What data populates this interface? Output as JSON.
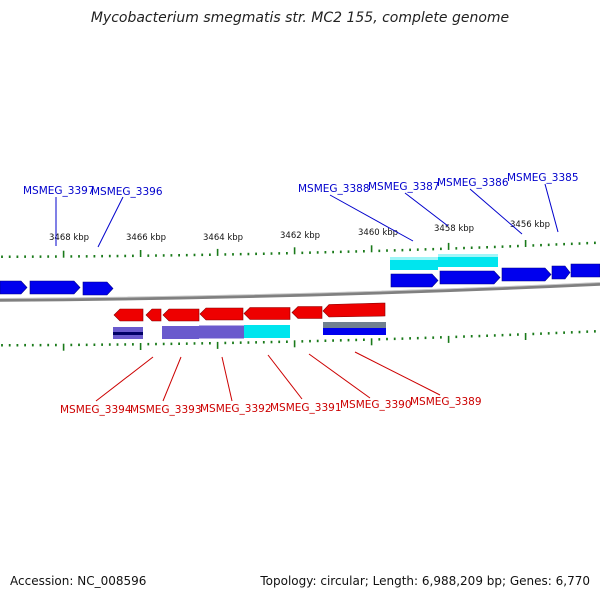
{
  "title": "Mycobacterium smegmatis str. MC2 155, complete genome",
  "colors": {
    "forward": "#0000ee",
    "reverse": "#ee0000",
    "forward_label": "#0000cc",
    "reverse_label": "#cc0000",
    "cyan": "#00e5ee",
    "purple": "#6a5acd",
    "tick": "#1a7a1a",
    "backbone": "#888888"
  },
  "kbp_labels": [
    "3468 kbp",
    "3466 kbp",
    "3464 kbp",
    "3462 kbp",
    "3460 kbp",
    "3458 kbp",
    "3456 kbp"
  ],
  "top_genes": [
    "MSMEG_3397",
    "MSMEG_3396",
    "MSMEG_3388",
    "MSMEG_3387",
    "MSMEG_3386",
    "MSMEG_3385"
  ],
  "bottom_genes": [
    "MSMEG_3394",
    "MSMEG_3393",
    "MSMEG_3392",
    "MSMEG_3391",
    "MSMEG_3390",
    "MSMEG_3389"
  ],
  "footer": {
    "accession": "Accession: NC_008596",
    "summary": "Topology: circular; Length: 6,988,209 bp; Genes: 6,770"
  }
}
